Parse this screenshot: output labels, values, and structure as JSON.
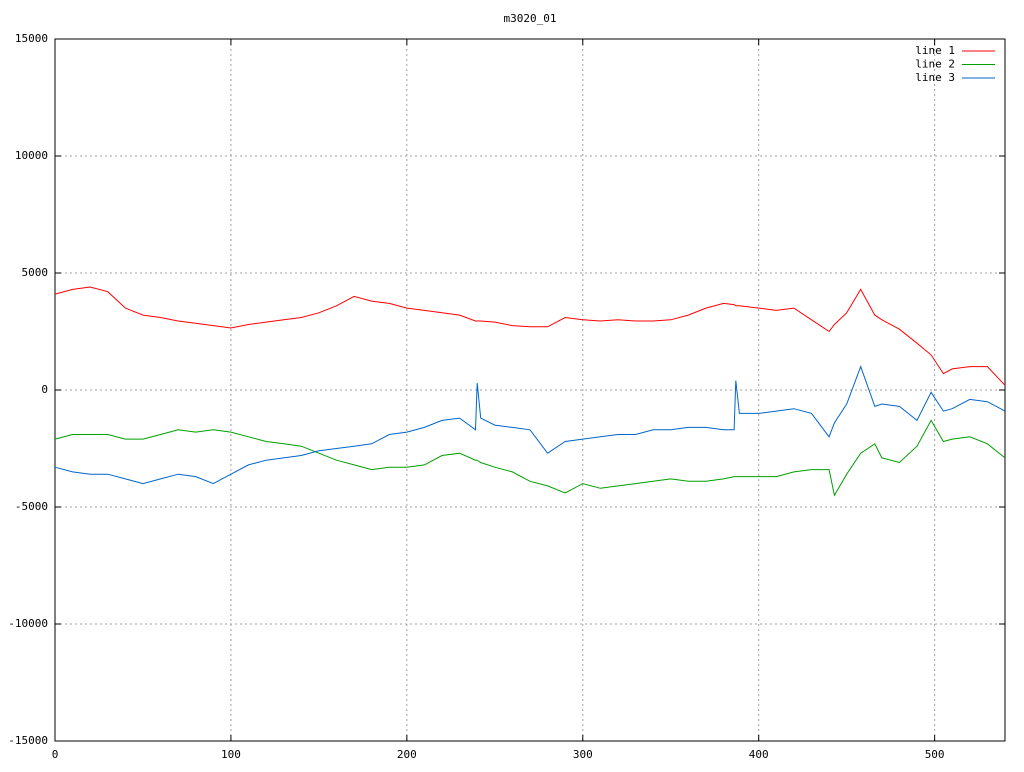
{
  "chart_data": {
    "type": "line",
    "title": "m3020_01",
    "x": [
      0,
      10,
      20,
      30,
      40,
      50,
      60,
      70,
      80,
      90,
      100,
      110,
      120,
      130,
      140,
      150,
      160,
      170,
      180,
      190,
      200,
      210,
      220,
      230,
      239,
      240,
      242,
      250,
      260,
      270,
      280,
      290,
      300,
      310,
      320,
      330,
      340,
      350,
      360,
      370,
      380,
      386,
      387,
      389,
      400,
      410,
      420,
      430,
      440,
      443,
      450,
      458,
      466,
      470,
      480,
      490,
      498,
      505,
      510,
      520,
      530,
      540
    ],
    "series": [
      {
        "name": "line 1",
        "color": "#ff0000",
        "values": [
          4100,
          4300,
          4400,
          4200,
          3500,
          3200,
          3100,
          2950,
          2850,
          2750,
          2650,
          2800,
          2900,
          3000,
          3100,
          3300,
          3600,
          4000,
          3800,
          3700,
          3500,
          3400,
          3300,
          3200,
          2950,
          2950,
          2950,
          2900,
          2750,
          2700,
          2700,
          3100,
          3000,
          2950,
          3000,
          2950,
          2950,
          3000,
          3200,
          3500,
          3700,
          3650,
          3600,
          3600,
          3500,
          3400,
          3500,
          3000,
          2500,
          2800,
          3300,
          4300,
          3200,
          3000,
          2600,
          2000,
          1500,
          700,
          900,
          1000,
          1000,
          200
        ]
      },
      {
        "name": "line 2",
        "color": "#00a000",
        "values": [
          -2100,
          -1900,
          -1900,
          -1900,
          -2100,
          -2100,
          -1900,
          -1700,
          -1800,
          -1700,
          -1800,
          -2000,
          -2200,
          -2300,
          -2400,
          -2700,
          -3000,
          -3200,
          -3400,
          -3300,
          -3300,
          -3200,
          -2800,
          -2700,
          -3000,
          -3000,
          -3100,
          -3300,
          -3500,
          -3900,
          -4100,
          -4400,
          -4000,
          -4200,
          -4100,
          -4000,
          -3900,
          -3800,
          -3900,
          -3900,
          -3800,
          -3700,
          -3700,
          -3700,
          -3700,
          -3700,
          -3500,
          -3400,
          -3400,
          -4500,
          -3600,
          -2700,
          -2300,
          -2900,
          -3100,
          -2400,
          -1300,
          -2200,
          -2100,
          -2000,
          -2300,
          -2900
        ]
      },
      {
        "name": "line 3",
        "color": "#0066cc",
        "values": [
          -3300,
          -3500,
          -3600,
          -3600,
          -3800,
          -4000,
          -3800,
          -3600,
          -3700,
          -4000,
          -3600,
          -3200,
          -3000,
          -2900,
          -2800,
          -2600,
          -2500,
          -2400,
          -2300,
          -1900,
          -1800,
          -1600,
          -1300,
          -1200,
          -1700,
          300,
          -1200,
          -1500,
          -1600,
          -1700,
          -2700,
          -2200,
          -2100,
          -2000,
          -1900,
          -1900,
          -1700,
          -1700,
          -1600,
          -1600,
          -1700,
          -1700,
          400,
          -1000,
          -1000,
          -900,
          -800,
          -1000,
          -2000,
          -1400,
          -600,
          1000,
          -700,
          -600,
          -700,
          -1300,
          -100,
          -900,
          -800,
          -400,
          -500,
          -900
        ]
      }
    ],
    "xlim": [
      0,
      540
    ],
    "xticks": [
      0,
      100,
      200,
      300,
      400,
      500
    ],
    "ylim": [
      -15000,
      15000
    ],
    "yticks": [
      -15000,
      -10000,
      -5000,
      0,
      5000,
      10000,
      15000
    ],
    "grid": true,
    "legend": "top-right"
  }
}
